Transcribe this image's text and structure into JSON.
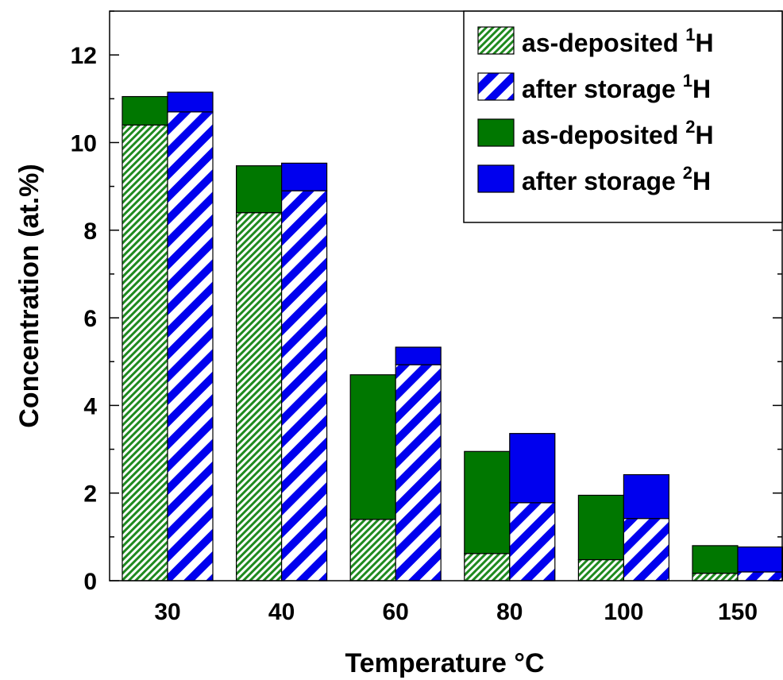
{
  "chart_data": {
    "type": "bar",
    "stacked": true,
    "xlabel": "Temperature",
    "xlabel_unit": "°C",
    "ylabel": "Concentration (at.%)",
    "ylim": [
      0,
      13
    ],
    "yticks": [
      0,
      2,
      4,
      6,
      8,
      10,
      12
    ],
    "categories": [
      "30",
      "40",
      "60",
      "80",
      "100",
      "150"
    ],
    "groups": [
      {
        "name": "as-deposited",
        "layers": [
          {
            "label": "as-deposited",
            "isotope": "1",
            "element": "H",
            "values": [
              10.4,
              8.4,
              1.4,
              0.62,
              0.48,
              0.17
            ],
            "color": "#1f8a1f",
            "pattern": "fine-hatch"
          },
          {
            "label": "as-deposited",
            "isotope": "2",
            "element": "H",
            "values": [
              0.65,
              1.07,
              3.3,
              2.33,
              1.47,
              0.63
            ],
            "color": "#007700",
            "pattern": "solid"
          }
        ]
      },
      {
        "name": "after storage",
        "layers": [
          {
            "label": "after storage",
            "isotope": "1",
            "element": "H",
            "values": [
              10.7,
              8.9,
              4.93,
              1.78,
              1.42,
              0.2
            ],
            "color": "#0000ee",
            "pattern": "wide-stripe"
          },
          {
            "label": "after storage",
            "isotope": "2",
            "element": "H",
            "values": [
              0.45,
              0.63,
              0.4,
              1.58,
              1.0,
              0.57
            ],
            "color": "#0000ee",
            "pattern": "solid"
          }
        ]
      }
    ],
    "legend_position": "top-right",
    "legend": [
      {
        "text": "as-deposited",
        "sup": "1",
        "element": "H"
      },
      {
        "text": "after storage",
        "sup": "1",
        "element": "H"
      },
      {
        "text": "as-deposited",
        "sup": "2",
        "element": "H"
      },
      {
        "text": "after storage",
        "sup": "2",
        "element": "H"
      }
    ],
    "grid": false
  }
}
